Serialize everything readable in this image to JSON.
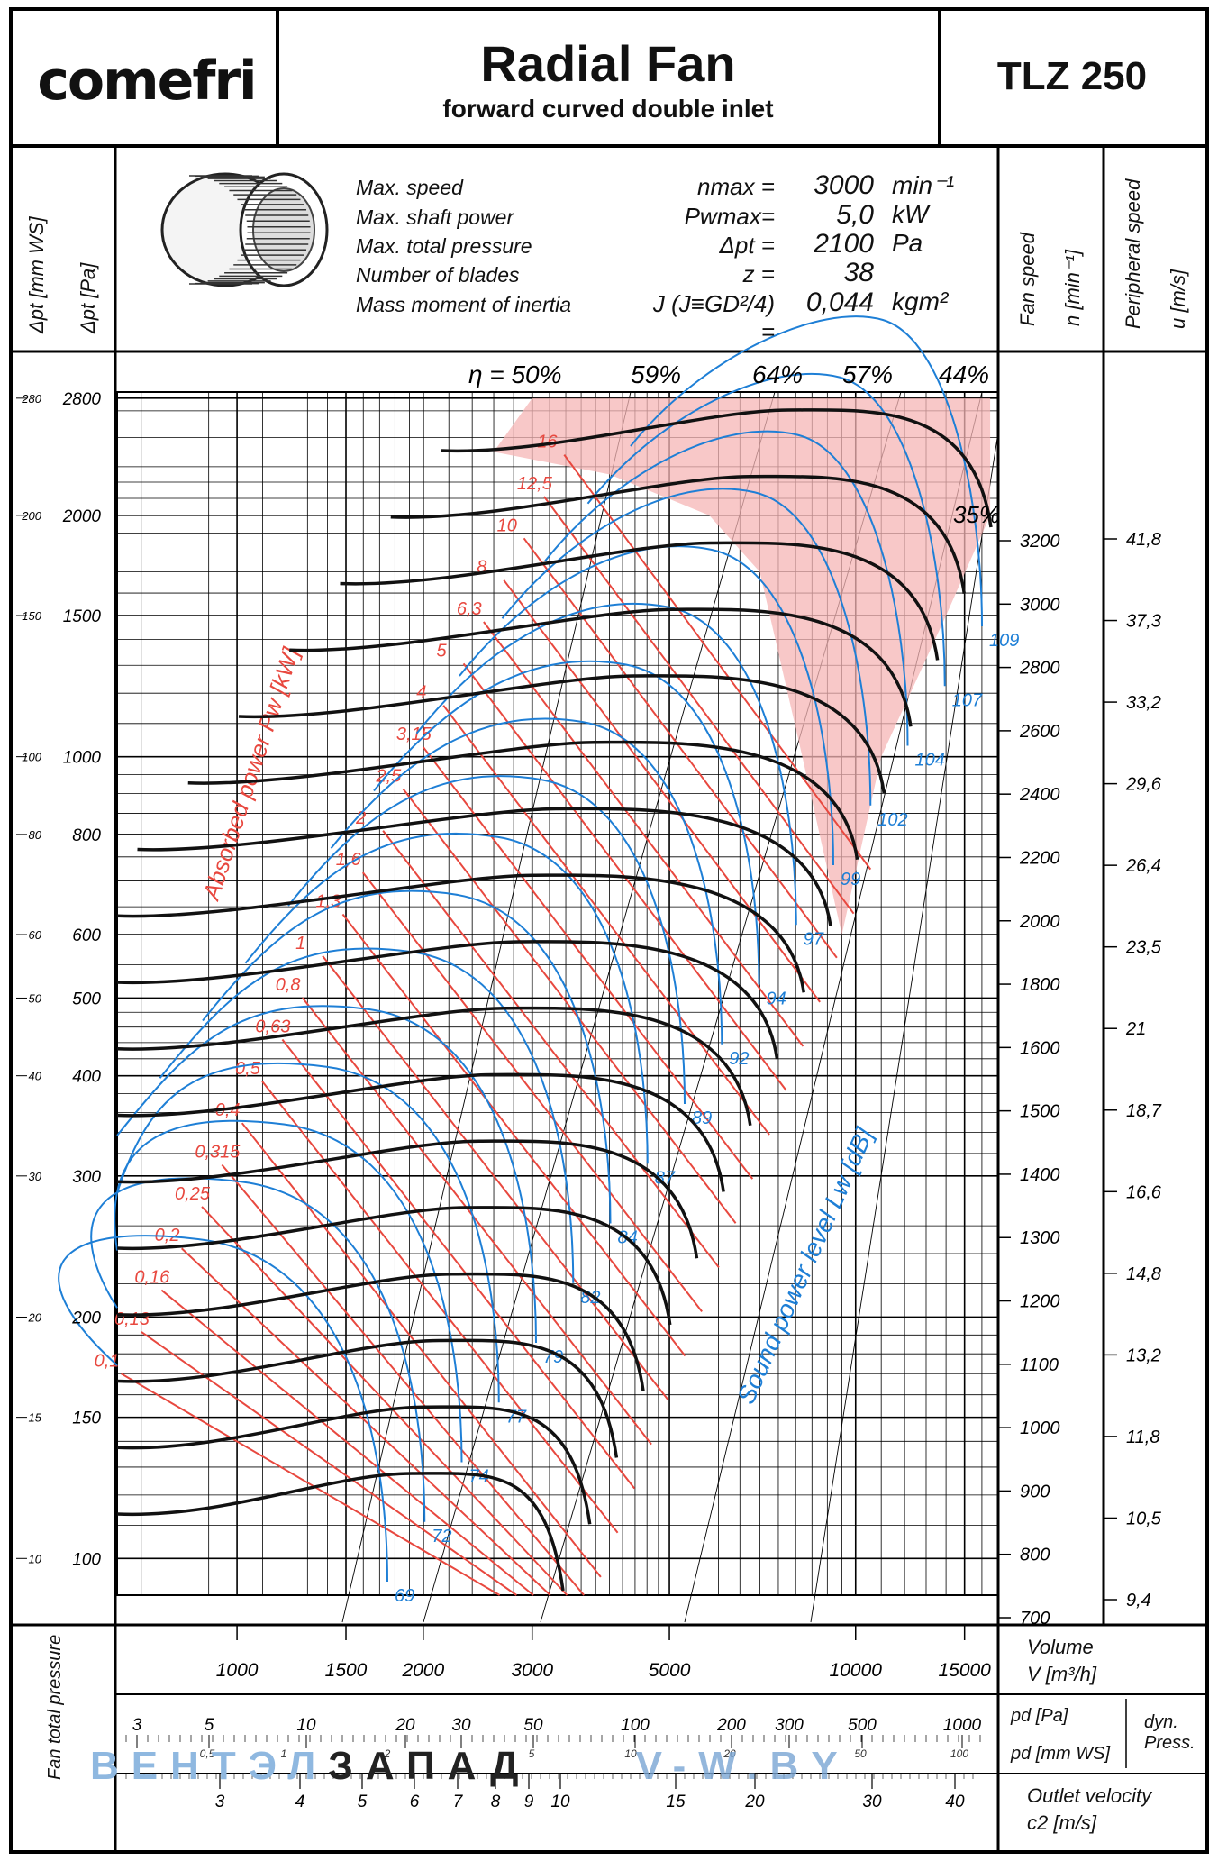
{
  "header": {
    "brand": "comefri",
    "title": "Radial Fan",
    "subtitle": "forward curved double inlet",
    "model": "TLZ 250"
  },
  "specs": {
    "items": [
      {
        "label": "Max. speed",
        "symbol": "nmax =",
        "value": "3000",
        "unit": "min⁻¹"
      },
      {
        "label": "Max. shaft power",
        "symbol": "Pwmax=",
        "value": "5,0",
        "unit": "kW"
      },
      {
        "label": "Max. total pressure",
        "symbol": "Δpt =",
        "value": "2100",
        "unit": "Pa"
      },
      {
        "label": "Number of blades",
        "symbol": "z =",
        "value": "38",
        "unit": ""
      },
      {
        "label": "Mass moment of inertia",
        "symbol": "J (J≡GD²/4) =",
        "value": "0,044",
        "unit": "kgm²"
      }
    ],
    "icon": "fan-wheel-icon"
  },
  "side_labels": {
    "left_mmws": "Δpt [mm WS]",
    "left_pa": "Δpt [Pa]",
    "fan_speed": "Fan speed",
    "fan_speed_unit": "n [min⁻¹]",
    "peripheral": "Peripheral speed",
    "peripheral_unit": "u [m/s]"
  },
  "footer": {
    "fan_total_pressure": "Fan total pressure",
    "volume_label": "Volume",
    "volume_unit": "V [m³/h]",
    "pd_pa": "pd [Pa]",
    "pd_mmws": "pd [mm WS]",
    "dyn_press": "dyn. Press.",
    "outlet_velocity": "Outlet velocity",
    "outlet_unit": "c2 [m/s]"
  },
  "watermark": {
    "part1": "ВЕНТЭЛ",
    "part2": "ЗАПАД",
    "part3": "V-W.BY"
  },
  "chart_data": {
    "type": "line",
    "xscale": "log",
    "yscale": "log",
    "xlim": [
      640,
      17000
    ],
    "ylim": [
      90,
      2850
    ],
    "x_ticks": [
      1000,
      1500,
      2000,
      3000,
      5000,
      10000,
      15000
    ],
    "y_ticks_pa": [
      100,
      150,
      200,
      300,
      400,
      500,
      600,
      800,
      1000,
      1500,
      2000,
      2800
    ],
    "y_ticks_mmws": [
      "10",
      "15",
      "20",
      "30",
      "40",
      "50",
      "60",
      "80",
      "100",
      "150",
      "200",
      "280"
    ],
    "efficiency_labels": [
      "η = 50%",
      "59%",
      "64%",
      "57%",
      "44%",
      "35%"
    ],
    "power_label": "Absorbed power Pw [kW]",
    "power_values": [
      "0,1",
      "0,13",
      "0,16",
      "0,2",
      "0,25",
      "0,315",
      "0,4",
      "0,5",
      "0,63",
      "0,8",
      "1",
      "1,3",
      "1,6",
      "2",
      "2,5",
      "3,15",
      "4",
      "5",
      "6,3",
      "8",
      "10",
      "12,5",
      "16"
    ],
    "sound_label": "Sound power level Lw [dB]",
    "sound_values": [
      "69",
      "72",
      "74",
      "77",
      "79",
      "82",
      "84",
      "87",
      "89",
      "92",
      "94",
      "97",
      "99",
      "102",
      "104",
      "107",
      "109"
    ],
    "speeds": [
      "700",
      "800",
      "900",
      "1000",
      "1100",
      "1200",
      "1300",
      "1400",
      "1500",
      "1600",
      "1800",
      "2000",
      "2200",
      "2400",
      "2600",
      "2800",
      "3000",
      "3200"
    ],
    "peripheral_speeds": [
      "9,4",
      "10,5",
      "11,8",
      "13,2",
      "14,8",
      "16,6",
      "18,7",
      "21",
      "23,5",
      "26,4",
      "29,6",
      "33,2",
      "37,3",
      "41,8"
    ],
    "pd_pa_ticks": [
      "3",
      "5",
      "10",
      "20",
      "30",
      "50",
      "100",
      "200",
      "300",
      "500",
      "1000"
    ],
    "pd_mmws_ticks": [
      "0,5",
      "1",
      "2",
      "5",
      "10",
      "20",
      "50",
      "100"
    ],
    "c2_ticks": [
      "3",
      "4",
      "5",
      "6",
      "7",
      "8",
      "9",
      "10",
      "15",
      "20",
      "30",
      "40"
    ],
    "colors": {
      "power": "#e8483f",
      "sound": "#1e7fd6",
      "speed": "#111111",
      "zone": "#f6b6b6",
      "grid": "#000000"
    }
  }
}
